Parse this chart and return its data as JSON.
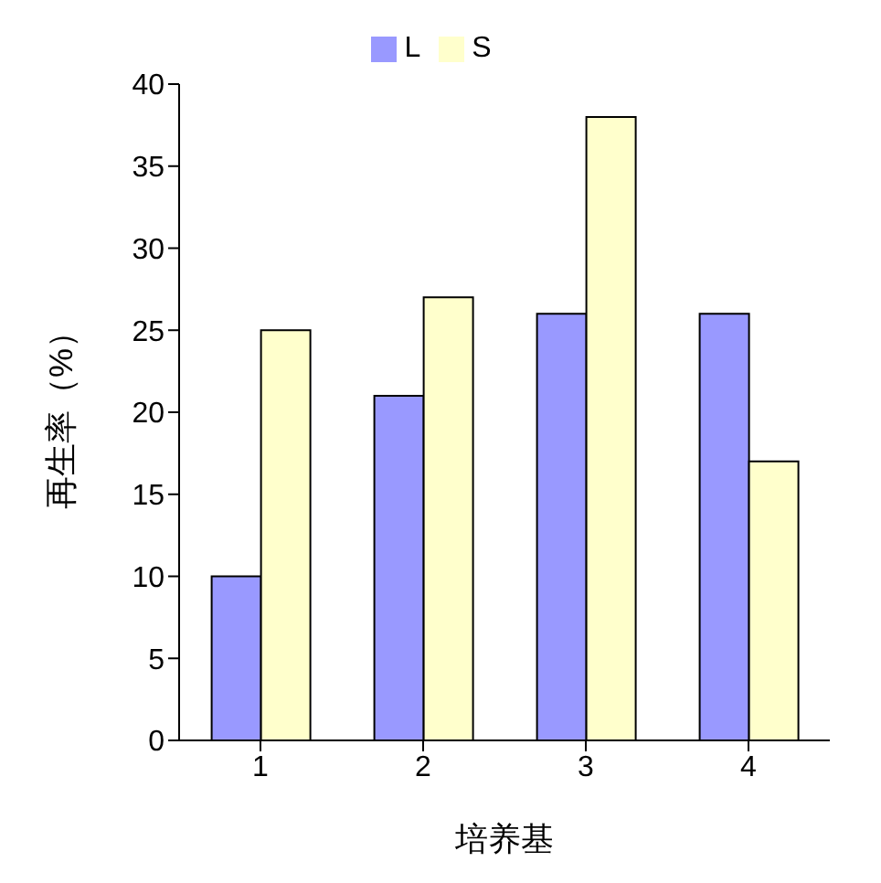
{
  "chart_data": {
    "type": "bar",
    "xlabel": "培养基",
    "ylabel": "再生率（%）",
    "categories": [
      "1",
      "2",
      "3",
      "4"
    ],
    "series": [
      {
        "name": "L",
        "color": "#9999ff",
        "values": [
          10,
          21,
          26,
          26
        ]
      },
      {
        "name": "S",
        "color": "#ffffcc",
        "values": [
          25,
          27,
          38,
          17
        ]
      }
    ],
    "ylim": [
      0,
      40
    ],
    "yticks": [
      0,
      5,
      10,
      15,
      20,
      25,
      30,
      35,
      40
    ],
    "grid": false,
    "legend": "top"
  }
}
